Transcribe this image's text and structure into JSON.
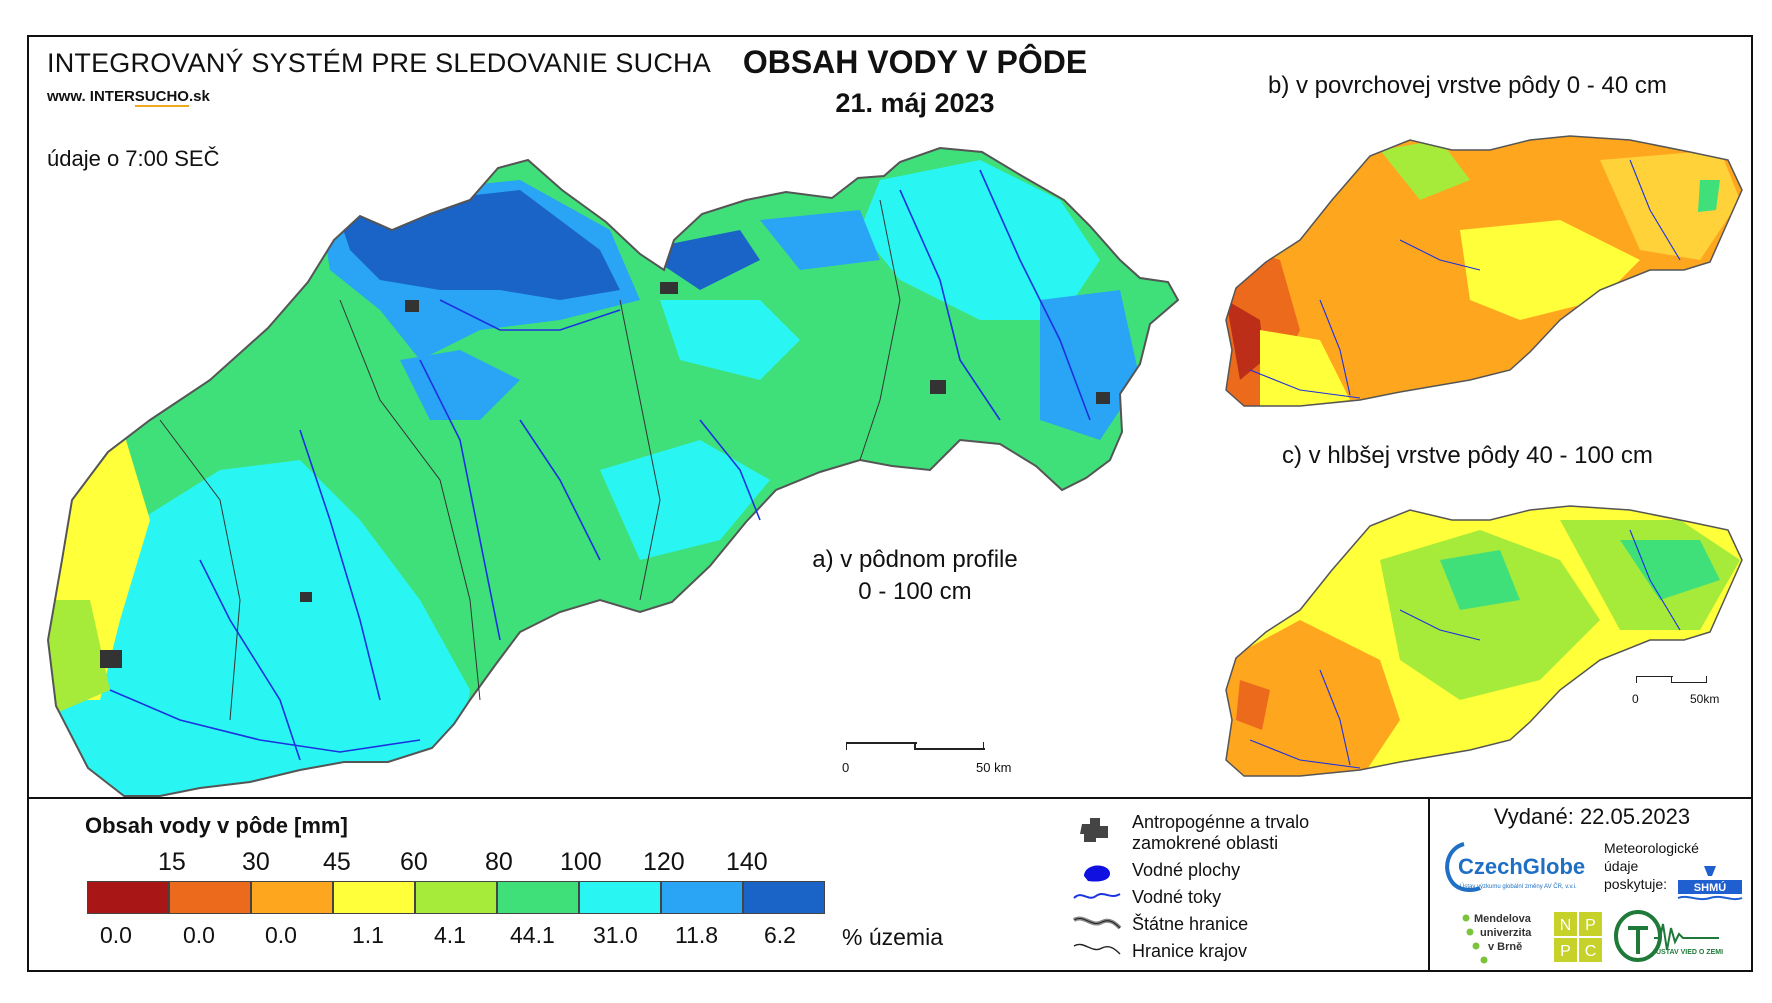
{
  "header": {
    "system_title": "INTEGROVANÝ SYSTÉM PRE SLEDOVANIE SUCHA",
    "website_prefix": "www. INTER",
    "website_mid": "SUCHO",
    "website_suffix": ".sk",
    "data_time": "údaje o 7:00 SEČ",
    "map_title": "OBSAH VODY V PÔDE",
    "map_date": "21. máj 2023"
  },
  "panels": {
    "a_label_line1": "a) v pôdnom profile",
    "a_label_line2": "0 - 100 cm",
    "b_label": "b) v povrchovej vrstve pôdy 0 - 40 cm",
    "c_label": "c) v hlbšej vrstve pôdy 40 - 100 cm"
  },
  "scalebars": {
    "main_start": "0",
    "main_end": "50 km",
    "small_start": "0",
    "small_end": "50km"
  },
  "legend": {
    "title": "Obsah vody v pôde  [mm]",
    "thresholds": [
      "15",
      "30",
      "45",
      "60",
      "80",
      "100",
      "120",
      "140"
    ],
    "classes": [
      {
        "color": "#a81616",
        "percent": "0.0"
      },
      {
        "color": "#ec6a1c",
        "percent": "0.0"
      },
      {
        "color": "#ffa61f",
        "percent": "0.0"
      },
      {
        "color": "#ffff3a",
        "percent": "1.1"
      },
      {
        "color": "#a6ea3a",
        "percent": "4.1"
      },
      {
        "color": "#3fe07a",
        "percent": "44.1"
      },
      {
        "color": "#29f6f2",
        "percent": "31.0"
      },
      {
        "color": "#2aa4f4",
        "percent": "11.8"
      },
      {
        "color": "#1a63c7",
        "percent": "6.2"
      }
    ],
    "percent_unit": "% územia"
  },
  "symbols": {
    "anthropogenic_line1": "Antropogénne a trvalo",
    "anthropogenic_line2": "zamokrené oblasti",
    "water_bodies": "Vodné plochy",
    "rivers": "Vodné toky",
    "state_border": "Štátne hranice",
    "region_border": "Hranice krajov"
  },
  "footer": {
    "issued": "Vydané: 22.05.2023",
    "czechglobe": "CzechGlobe",
    "czechglobe_sub": "Ústav výzkumu globální změny AV ČR, v.v.i.",
    "meteo_line1": "Meteorologické",
    "meteo_line2": "údaje",
    "meteo_line3": "poskytuje:",
    "shmu": "SHMÚ",
    "mendel_line1": "Mendelova",
    "mendel_line2": "univerzita",
    "mendel_line3": "v Brně",
    "nppc_n": "N",
    "nppc_p1": "P",
    "nppc_p2": "P",
    "nppc_c": "C",
    "uvz": "ÚSTAV VIED O ZEMI"
  }
}
